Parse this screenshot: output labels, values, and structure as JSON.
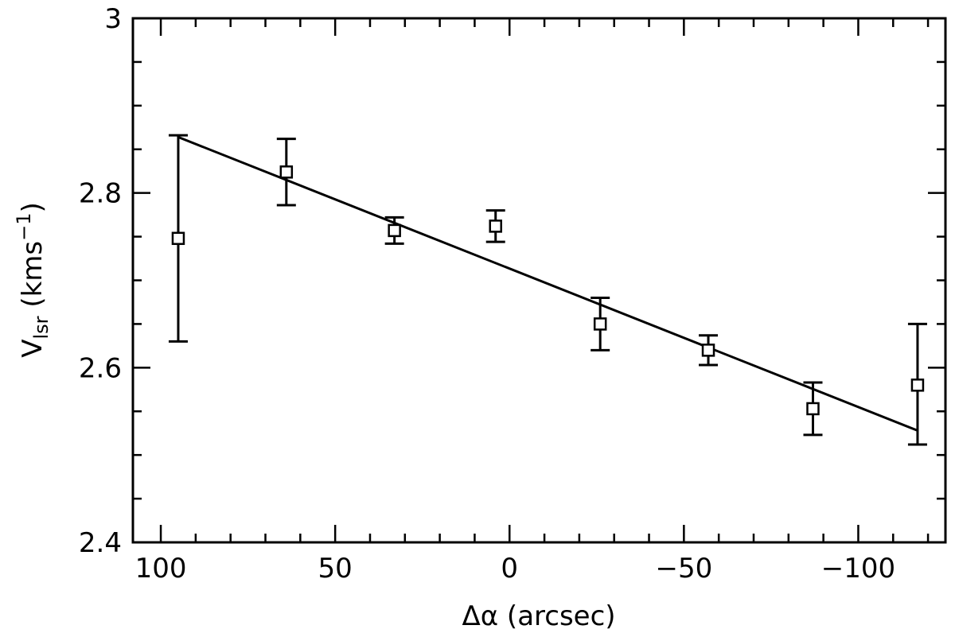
{
  "chart_data": {
    "type": "scatter",
    "title": "",
    "xlabel": "Δα (arcsec)",
    "ylabel_main": "V",
    "ylabel_sub": "lsr",
    "ylabel_unit_open": " (kms",
    "ylabel_unit_sup": "−1",
    "ylabel_unit_close": ")",
    "xlim": [
      108,
      -125
    ],
    "ylim": [
      2.4,
      3.0
    ],
    "x_reversed": true,
    "x_major_ticks": [
      100,
      50,
      0,
      -50,
      -100
    ],
    "x_minor_step": 10,
    "y_major_ticks": [
      2.4,
      2.6,
      2.8,
      3.0
    ],
    "y_minor_step": 0.05,
    "x_tick_labels": [
      "100",
      "50",
      "0",
      "−50",
      "−100"
    ],
    "y_tick_labels": [
      "2.4",
      "2.6",
      "2.8",
      "3"
    ],
    "grid": false,
    "legend": "none",
    "series": [
      {
        "marker": "open-square",
        "points": [
          {
            "x": 95,
            "y": 2.748,
            "ylo": 2.63,
            "yhi": 2.866
          },
          {
            "x": 64,
            "y": 2.824,
            "ylo": 2.786,
            "yhi": 2.862
          },
          {
            "x": 33,
            "y": 2.757,
            "ylo": 2.742,
            "yhi": 2.772
          },
          {
            "x": 4,
            "y": 2.762,
            "ylo": 2.744,
            "yhi": 2.78
          },
          {
            "x": -26,
            "y": 2.65,
            "ylo": 2.62,
            "yhi": 2.68
          },
          {
            "x": -57,
            "y": 2.62,
            "ylo": 2.603,
            "yhi": 2.637
          },
          {
            "x": -87,
            "y": 2.553,
            "ylo": 2.523,
            "yhi": 2.583
          },
          {
            "x": -117,
            "y": 2.58,
            "ylo": 2.512,
            "yhi": 2.65
          }
        ]
      }
    ],
    "fit_line": {
      "x": [
        95,
        -117
      ],
      "y": [
        2.864,
        2.528
      ]
    }
  }
}
